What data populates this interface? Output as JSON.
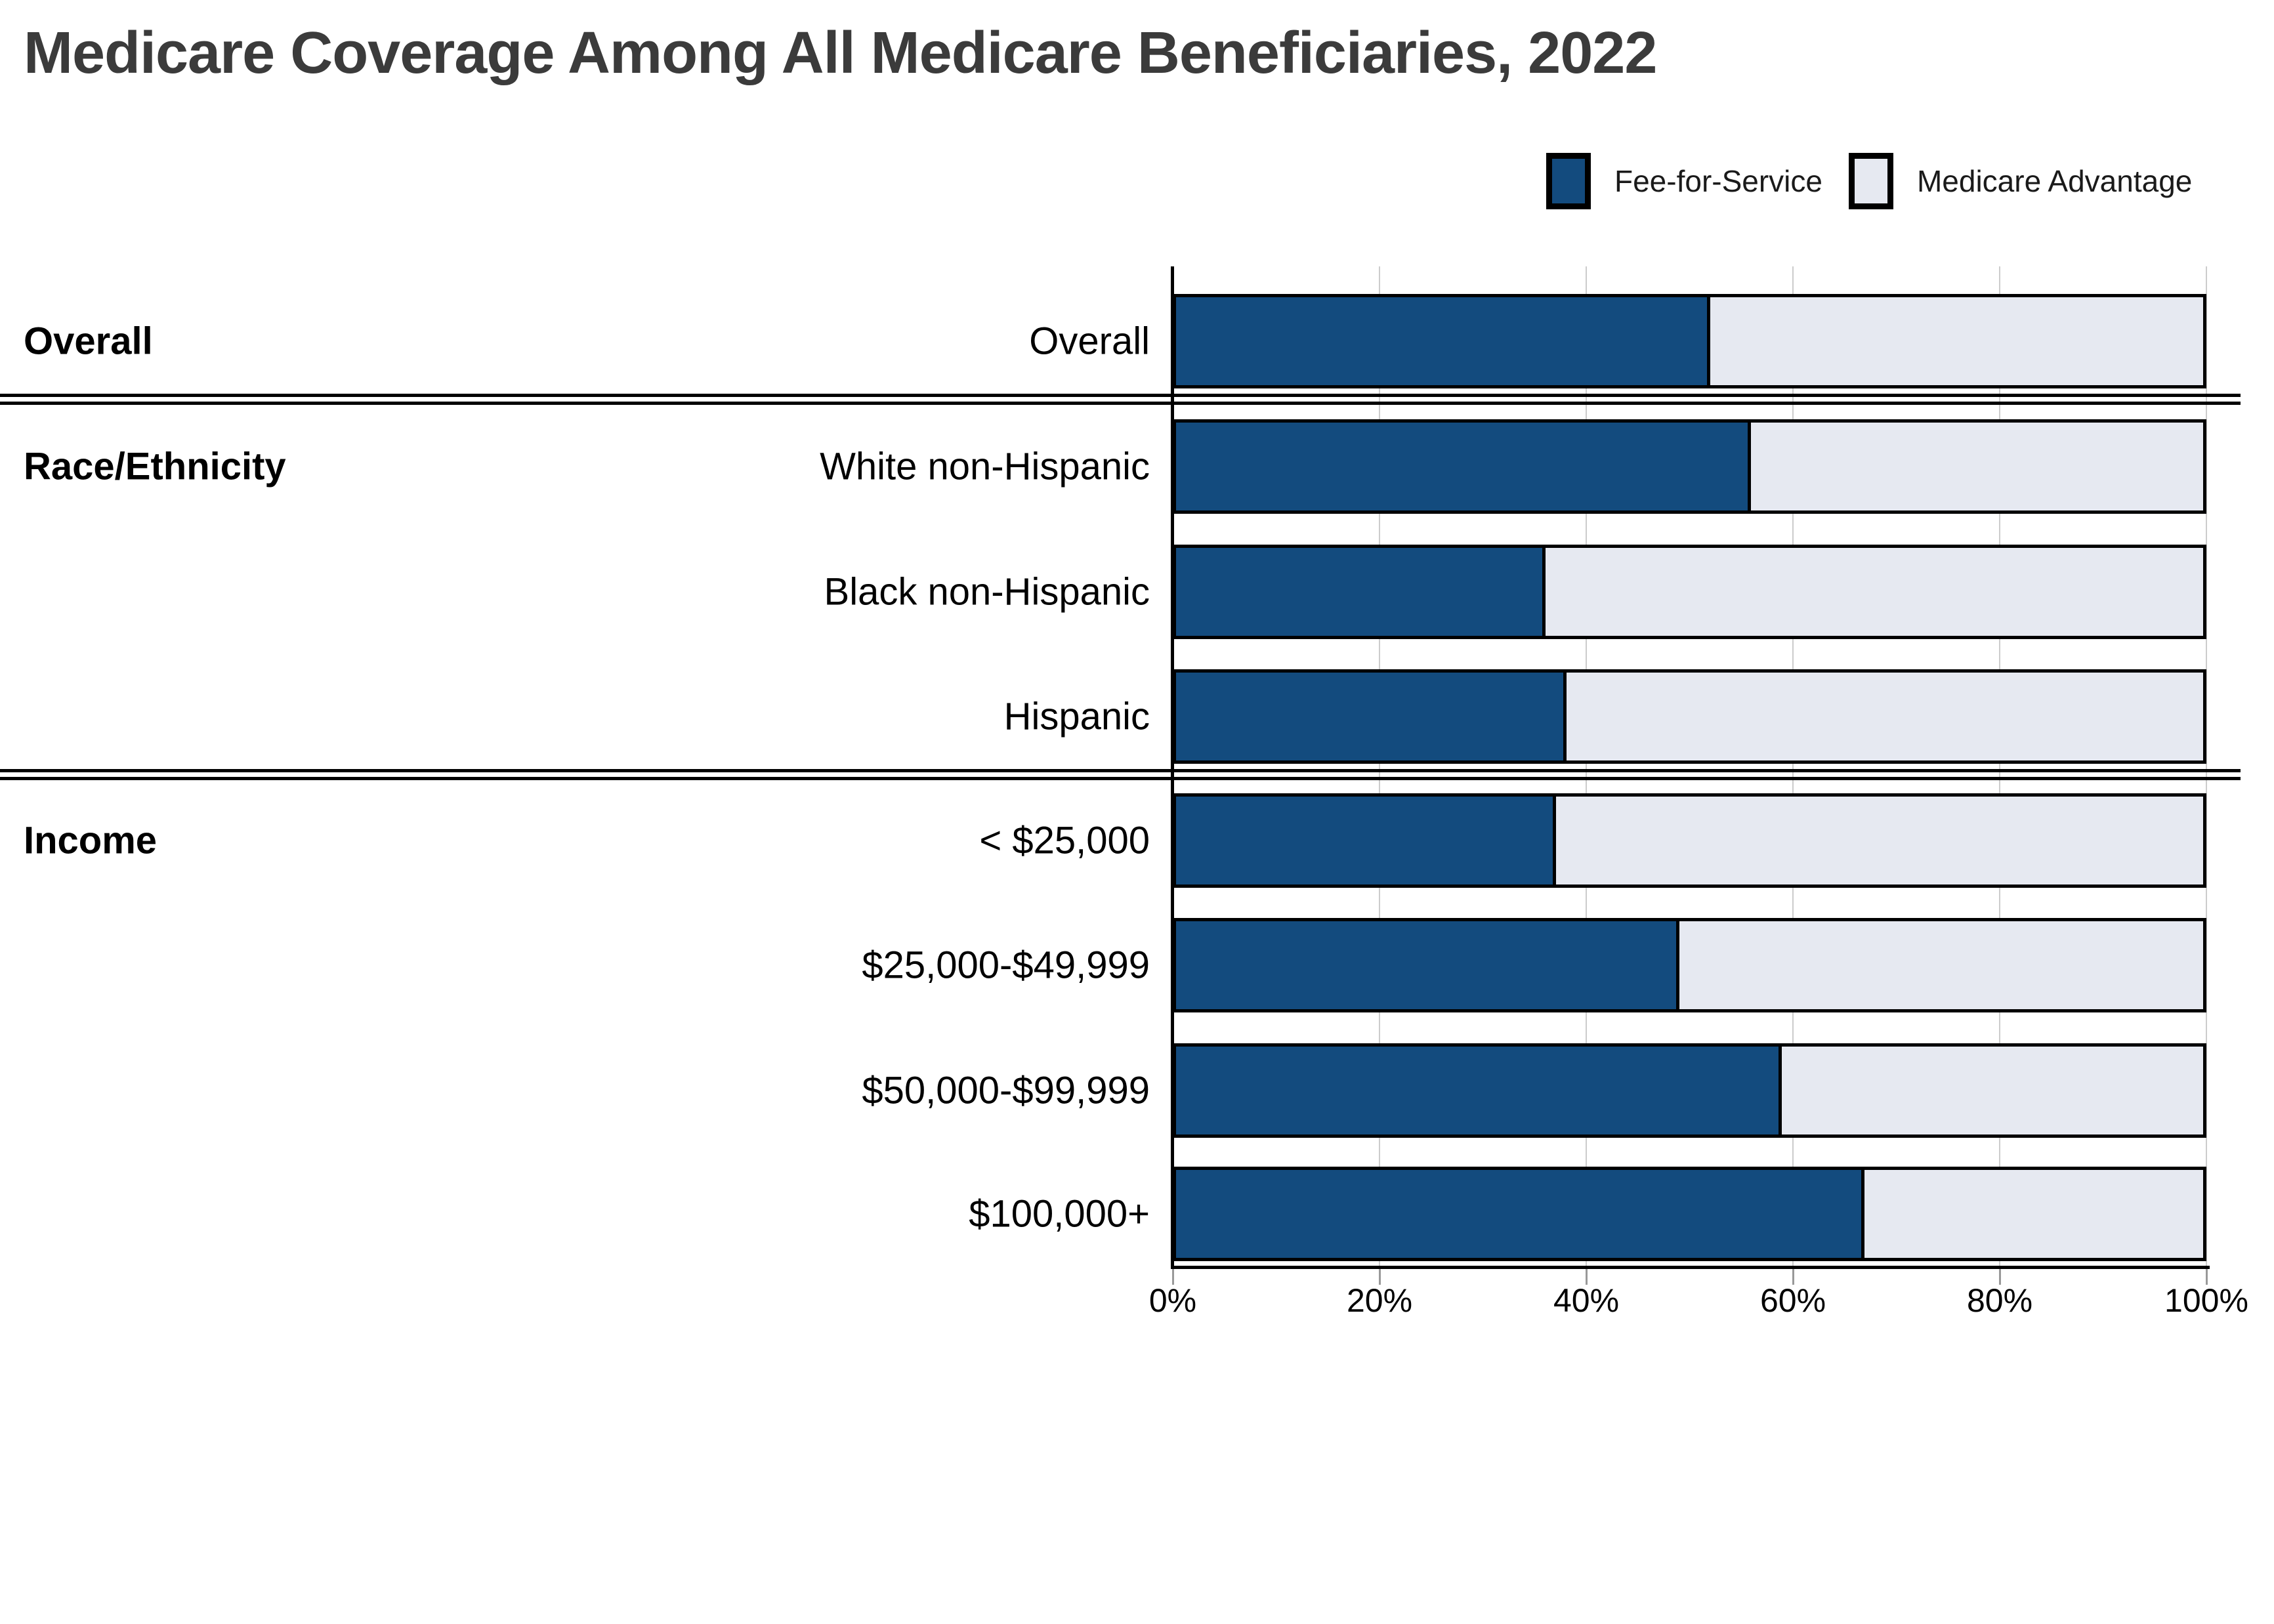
{
  "title": "Medicare Coverage Among All Medicare Beneficiaries, 2022",
  "legend": {
    "items": [
      {
        "label": "Fee-for-Service",
        "color": "#134b7e"
      },
      {
        "label": "Medicare Advantage",
        "color": "#e6e9f1"
      }
    ]
  },
  "colors": {
    "fee_for_service": "#134b7e",
    "medicare_advantage": "#e6e9f1",
    "bar_border": "#000000",
    "gridline": "#cccccc",
    "title_text": "#3b3b3b"
  },
  "axis": {
    "ticks": [
      "0%",
      "20%",
      "40%",
      "60%",
      "80%",
      "100%"
    ]
  },
  "sections": [
    {
      "header": "Overall",
      "rows": [
        {
          "label": "Overall",
          "ffs": 52,
          "ma": 48
        }
      ]
    },
    {
      "header": "Race/Ethnicity",
      "rows": [
        {
          "label": "White non-Hispanic",
          "ffs": 56,
          "ma": 44
        },
        {
          "label": "Black non-Hispanic",
          "ffs": 36,
          "ma": 64
        },
        {
          "label": "Hispanic",
          "ffs": 38,
          "ma": 62
        }
      ]
    },
    {
      "header": "Income",
      "rows": [
        {
          "label": "< $25,000",
          "ffs": 37,
          "ma": 63
        },
        {
          "label": "$25,000-$49,999",
          "ffs": 49,
          "ma": 51
        },
        {
          "label": "$50,000-$99,999",
          "ffs": 59,
          "ma": 41
        },
        {
          "label": "$100,000+",
          "ffs": 67,
          "ma": 33
        }
      ]
    }
  ],
  "chart_data": {
    "type": "bar",
    "orientation": "horizontal",
    "stacked": true,
    "title": "Medicare Coverage Among All Medicare Beneficiaries, 2022",
    "categories": [
      "Overall",
      "White non-Hispanic",
      "Black non-Hispanic",
      "Hispanic",
      "< $25,000",
      "$25,000-$49,999",
      "$50,000-$99,999",
      "$100,000+"
    ],
    "category_groups": [
      {
        "label": "Overall",
        "categories": [
          "Overall"
        ]
      },
      {
        "label": "Race/Ethnicity",
        "categories": [
          "White non-Hispanic",
          "Black non-Hispanic",
          "Hispanic"
        ]
      },
      {
        "label": "Income",
        "categories": [
          "< $25,000",
          "$25,000-$49,999",
          "$50,000-$99,999",
          "$100,000+"
        ]
      }
    ],
    "series": [
      {
        "name": "Fee-for-Service",
        "values": [
          52,
          56,
          36,
          38,
          37,
          49,
          59,
          67
        ],
        "color": "#134b7e"
      },
      {
        "name": "Medicare Advantage",
        "values": [
          48,
          44,
          64,
          62,
          63,
          51,
          41,
          33
        ],
        "color": "#e6e9f1"
      }
    ],
    "xlabel": "",
    "ylabel": "",
    "xlim": [
      0,
      100
    ],
    "x_ticks": [
      "0%",
      "20%",
      "40%",
      "60%",
      "80%",
      "100%"
    ],
    "grid": true,
    "legend_position": "top-right"
  }
}
